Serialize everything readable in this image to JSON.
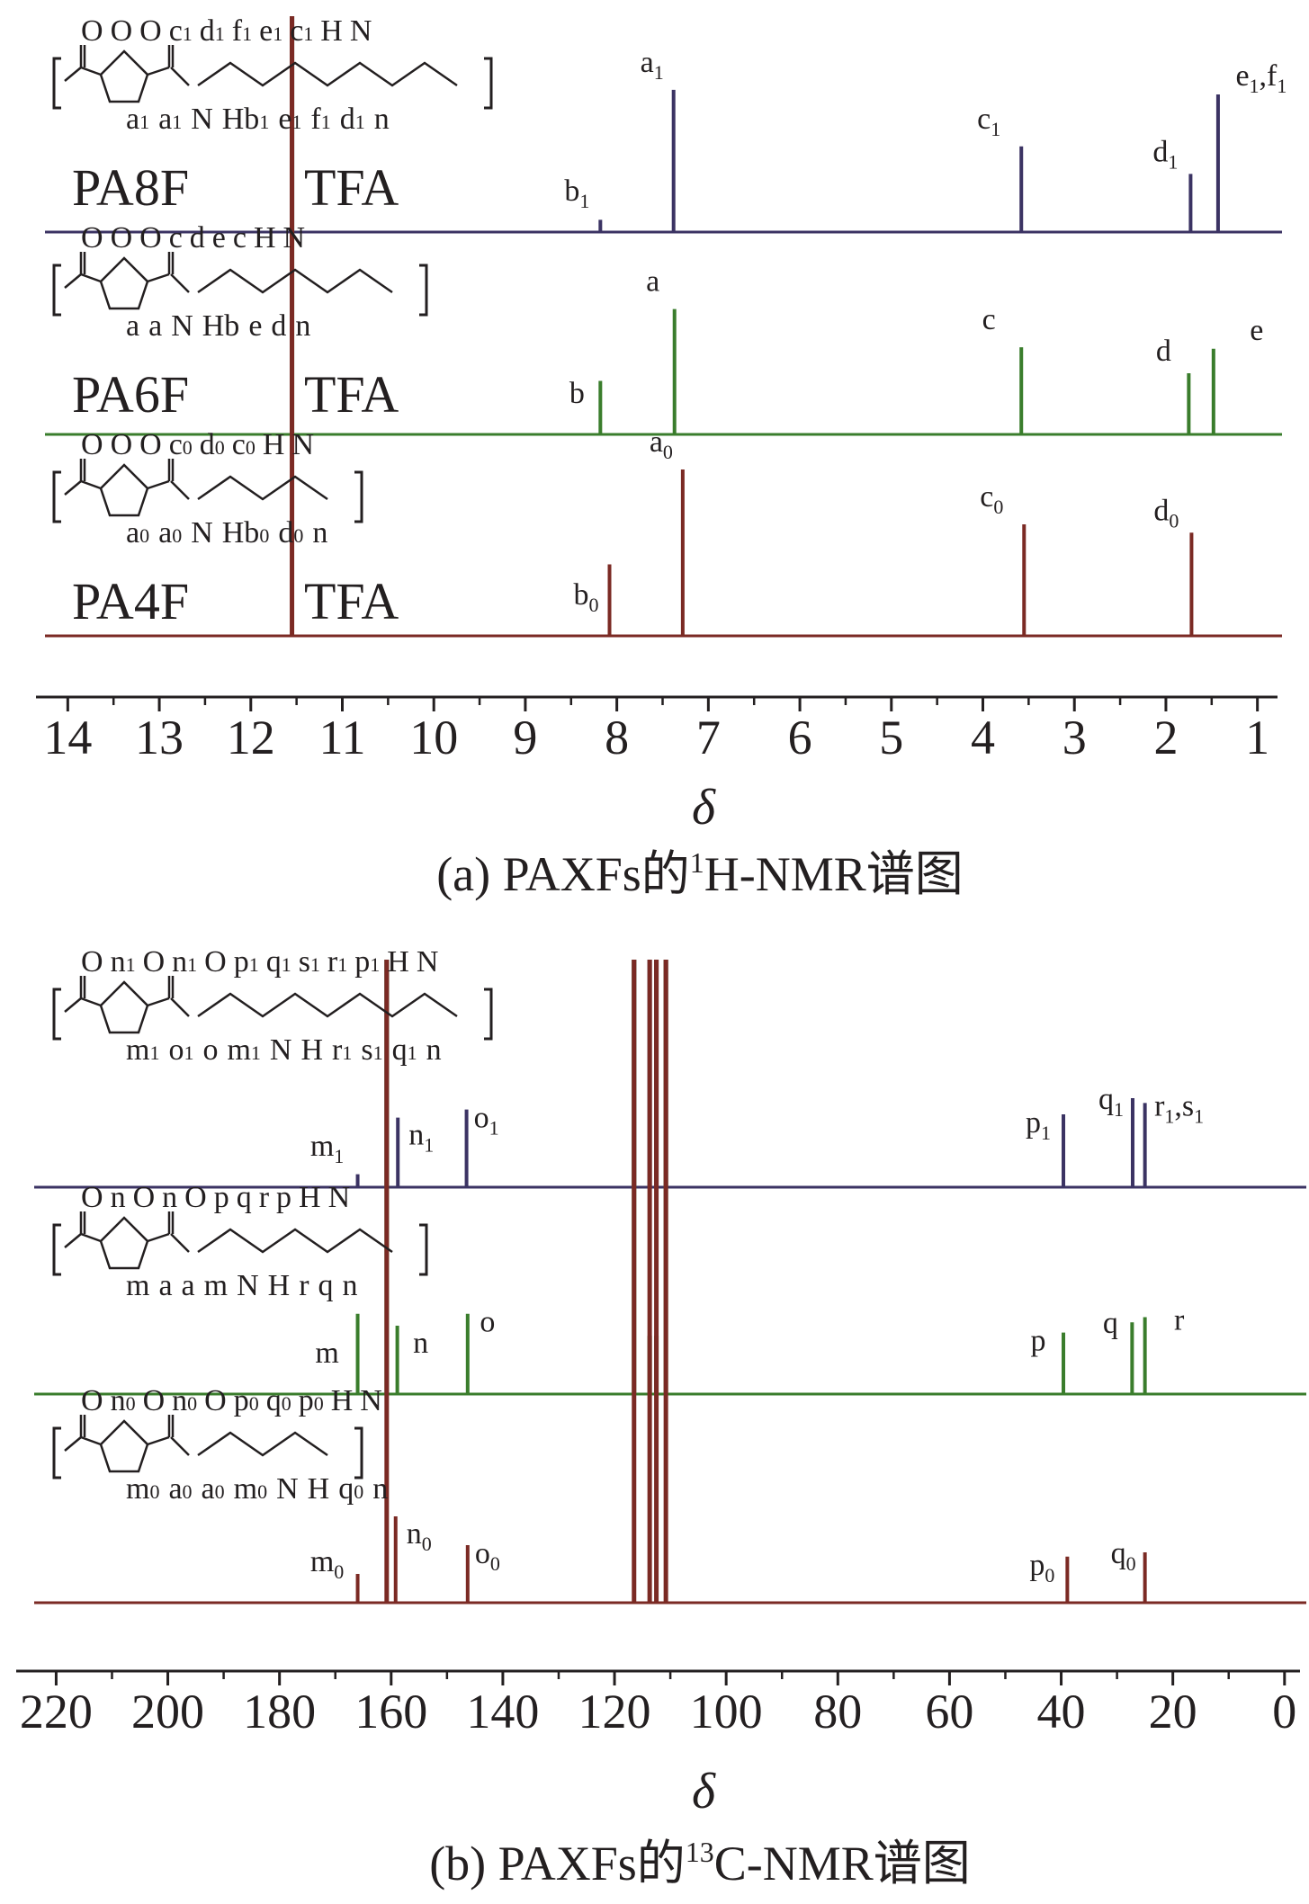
{
  "panels": [
    {
      "id": "a",
      "caption": {
        "prefix": "(a) PAXFs的",
        "sup": "1",
        "suffix": "H-NMR谱图"
      },
      "samples": [
        {
          "name": "PA8F",
          "solvent": "TFA",
          "color": "#3b3363",
          "structure": {
            "top": [
              "O",
              "O",
              "O",
              "c",
              "1",
              "d",
              "1",
              "f",
              "1",
              "e",
              "1",
              "c",
              "1",
              "H",
              "N"
            ],
            "bottom": [
              "a",
              "1",
              "a",
              "1",
              "N",
              "Hb",
              "1",
              "e",
              "1",
              "f",
              "1",
              "d",
              "1",
              "n"
            ]
          },
          "peaks": [
            {
              "label": "b",
              "sub": "1"
            },
            {
              "label": "a",
              "sub": "1"
            },
            {
              "label": "c",
              "sub": "1"
            },
            {
              "label": "d",
              "sub": "1"
            },
            {
              "label": "e",
              "sub": "1",
              "label2": "f",
              "sub2": "1"
            }
          ]
        },
        {
          "name": "PA6F",
          "solvent": "TFA",
          "color": "#3a7d2c",
          "structure": {
            "top": [
              "O",
              "O",
              "O",
              "c",
              "d",
              "e",
              "c",
              "H",
              "N"
            ],
            "bottom": [
              "a",
              "a",
              "N",
              "Hb",
              "e",
              "d",
              "n"
            ]
          },
          "peaks": [
            {
              "label": "b",
              "sub": ""
            },
            {
              "label": "a",
              "sub": ""
            },
            {
              "label": "c",
              "sub": ""
            },
            {
              "label": "d",
              "sub": ""
            },
            {
              "label": "e",
              "sub": ""
            }
          ]
        },
        {
          "name": "PA4F",
          "solvent": "TFA",
          "color": "#7b2a24",
          "structure": {
            "top": [
              "O",
              "O",
              "O",
              "c",
              "0",
              "d",
              "0",
              "c",
              "0",
              "H",
              "N"
            ],
            "bottom": [
              "a",
              "0",
              "a",
              "0",
              "N",
              "Hb",
              "0",
              "d",
              "0",
              "n"
            ]
          },
          "peaks": [
            {
              "label": "b",
              "sub": "0"
            },
            {
              "label": "a",
              "sub": "0"
            },
            {
              "label": "c",
              "sub": "0"
            },
            {
              "label": "d",
              "sub": "0"
            }
          ]
        }
      ],
      "axis_title": "δ",
      "tick_labels": [
        "14",
        "13",
        "12",
        "11",
        "10",
        "9",
        "8",
        "7",
        "6",
        "5",
        "4",
        "3",
        "2",
        "1"
      ]
    },
    {
      "id": "b",
      "caption": {
        "prefix": "(b) PAXFs的",
        "sup": "13",
        "suffix": "C-NMR谱图"
      },
      "samples": [
        {
          "name": "PA8F",
          "color": "#3b3363",
          "structure": {
            "top": [
              "O",
              "n",
              "1",
              "O",
              "n",
              "1",
              "O",
              "p",
              "1",
              "q",
              "1",
              "s",
              "1",
              "r",
              "1",
              "p",
              "1",
              "H",
              "N"
            ],
            "bottom": [
              "m",
              "1",
              "o",
              "1",
              "o",
              "m",
              "1",
              "N",
              "H",
              "r",
              "1",
              "s",
              "1",
              "q",
              "1",
              "n"
            ]
          },
          "peaks": [
            {
              "label": "m",
              "sub": "1"
            },
            {
              "label": "n",
              "sub": "1"
            },
            {
              "label": "o",
              "sub": "1"
            },
            {
              "label": "p",
              "sub": "1"
            },
            {
              "label": "q",
              "sub": "1"
            },
            {
              "label": "r",
              "sub": "1",
              "label2": "s",
              "sub2": "1"
            }
          ]
        },
        {
          "name": "PA6F",
          "color": "#3a7d2c",
          "structure": {
            "top": [
              "O",
              "n",
              "O",
              "n",
              "O",
              "p",
              "q",
              "r",
              "p",
              "H",
              "N"
            ],
            "bottom": [
              "m",
              "a",
              "a",
              "m",
              "N",
              "H",
              "r",
              "q",
              "n"
            ]
          },
          "peaks": [
            {
              "label": "m",
              "sub": ""
            },
            {
              "label": "n",
              "sub": ""
            },
            {
              "label": "o",
              "sub": ""
            },
            {
              "label": "p",
              "sub": ""
            },
            {
              "label": "q",
              "sub": ""
            },
            {
              "label": "r",
              "sub": ""
            }
          ]
        },
        {
          "name": "PA4F",
          "color": "#7b2a24",
          "structure": {
            "top": [
              "O",
              "n",
              "0",
              "O",
              "n",
              "0",
              "O",
              "p",
              "0",
              "q",
              "0",
              "p",
              "0",
              "H",
              "N"
            ],
            "bottom": [
              "m",
              "0",
              "a",
              "0",
              "a",
              "0",
              "m",
              "0",
              "N",
              "H",
              "q",
              "0",
              "n"
            ]
          },
          "peaks": [
            {
              "label": "m",
              "sub": "0"
            },
            {
              "label": "n",
              "sub": "0"
            },
            {
              "label": "o",
              "sub": "0"
            },
            {
              "label": "p",
              "sub": "0"
            },
            {
              "label": "q",
              "sub": "0"
            }
          ]
        }
      ],
      "axis_title": "δ",
      "tick_labels": [
        "220",
        "200",
        "180",
        "160",
        "140",
        "120",
        "100",
        "80",
        "60",
        "40",
        "20",
        "0"
      ]
    }
  ],
  "chart_data": [
    {
      "type": "line",
      "title": "",
      "xlabel": "δ",
      "xlim": [
        14.2,
        0.8
      ],
      "x_reversed": true,
      "grid": false,
      "series": [
        {
          "name": "PA8F",
          "color": "#3b3363",
          "peaks": [
            {
              "x": 11.55,
              "height": 1.0,
              "label": "TFA"
            },
            {
              "x": 8.18,
              "height": 0.08,
              "label": "b1"
            },
            {
              "x": 7.38,
              "height": 0.93,
              "label": "a1"
            },
            {
              "x": 3.58,
              "height": 0.56,
              "label": "c1"
            },
            {
              "x": 1.73,
              "height": 0.38,
              "label": "d1"
            },
            {
              "x": 1.43,
              "height": 0.9,
              "label": "e1,f1"
            }
          ]
        },
        {
          "name": "PA6F",
          "color": "#3a7d2c",
          "peaks": [
            {
              "x": 11.55,
              "height": 1.0,
              "label": "TFA"
            },
            {
              "x": 8.18,
              "height": 0.35,
              "label": "b"
            },
            {
              "x": 7.37,
              "height": 0.82,
              "label": "a"
            },
            {
              "x": 3.58,
              "height": 0.57,
              "label": "c"
            },
            {
              "x": 1.75,
              "height": 0.4,
              "label": "d"
            },
            {
              "x": 1.48,
              "height": 0.56,
              "label": "e"
            }
          ]
        },
        {
          "name": "PA4F",
          "color": "#7b2a24",
          "peaks": [
            {
              "x": 11.55,
              "height": 1.0,
              "label": "TFA"
            },
            {
              "x": 8.08,
              "height": 0.43,
              "label": "b0"
            },
            {
              "x": 7.28,
              "height": 1.0,
              "label": "a0"
            },
            {
              "x": 3.55,
              "height": 0.67,
              "label": "c0"
            },
            {
              "x": 1.72,
              "height": 0.62,
              "label": "d0"
            }
          ]
        }
      ]
    },
    {
      "type": "line",
      "title": "",
      "xlabel": "δ",
      "xlim": [
        222,
        -1
      ],
      "x_reversed": true,
      "grid": false,
      "series": [
        {
          "name": "PA8F",
          "color": "#3b3363",
          "peaks": [
            {
              "x": 160.8,
              "height": 1.0,
              "label": "TFA"
            },
            {
              "x": 116.5,
              "height": 1.0,
              "label": "TFA"
            },
            {
              "x": 113.7,
              "height": 1.0,
              "label": "TFA"
            },
            {
              "x": 112.5,
              "height": 1.0,
              "label": "TFA"
            },
            {
              "x": 110.8,
              "height": 1.0,
              "label": "TFA"
            },
            {
              "x": 166.0,
              "height": 0.08,
              "label": "m1"
            },
            {
              "x": 158.8,
              "height": 0.43,
              "label": "n1"
            },
            {
              "x": 146.5,
              "height": 0.48,
              "label": "o1"
            },
            {
              "x": 39.6,
              "height": 0.45,
              "label": "p1"
            },
            {
              "x": 27.2,
              "height": 0.55,
              "label": "q1"
            },
            {
              "x": 25.0,
              "height": 0.52,
              "label": "r1,s1"
            }
          ]
        },
        {
          "name": "PA6F",
          "color": "#3a7d2c",
          "peaks": [
            {
              "x": 160.8,
              "height": 1.0,
              "label": "TFA"
            },
            {
              "x": 116.5,
              "height": 1.0,
              "label": "TFA"
            },
            {
              "x": 113.7,
              "height": 0.36,
              "label": "TFA"
            },
            {
              "x": 112.5,
              "height": 0.36,
              "label": "TFA"
            },
            {
              "x": 110.8,
              "height": 1.0,
              "label": "TFA"
            },
            {
              "x": 166.0,
              "height": 0.47,
              "label": "m"
            },
            {
              "x": 158.9,
              "height": 0.4,
              "label": "n"
            },
            {
              "x": 146.3,
              "height": 0.47,
              "label": "o"
            },
            {
              "x": 39.6,
              "height": 0.36,
              "label": "p"
            },
            {
              "x": 27.3,
              "height": 0.42,
              "label": "q"
            },
            {
              "x": 25.0,
              "height": 0.45,
              "label": "r"
            }
          ]
        },
        {
          "name": "PA4F",
          "color": "#7b2a24",
          "peaks": [
            {
              "x": 160.8,
              "height": 1.0,
              "label": "TFA"
            },
            {
              "x": 116.5,
              "height": 1.0,
              "label": "TFA"
            },
            {
              "x": 113.7,
              "height": 1.0,
              "label": "TFA"
            },
            {
              "x": 112.5,
              "height": 1.0,
              "label": "TFA"
            },
            {
              "x": 110.8,
              "height": 1.0,
              "label": "TFA"
            },
            {
              "x": 166.0,
              "height": 0.2,
              "label": "m0"
            },
            {
              "x": 159.2,
              "height": 0.6,
              "label": "n0"
            },
            {
              "x": 146.3,
              "height": 0.4,
              "label": "o0"
            },
            {
              "x": 38.9,
              "height": 0.32,
              "label": "p0"
            },
            {
              "x": 25.0,
              "height": 0.35,
              "label": "q0"
            }
          ]
        }
      ]
    }
  ]
}
